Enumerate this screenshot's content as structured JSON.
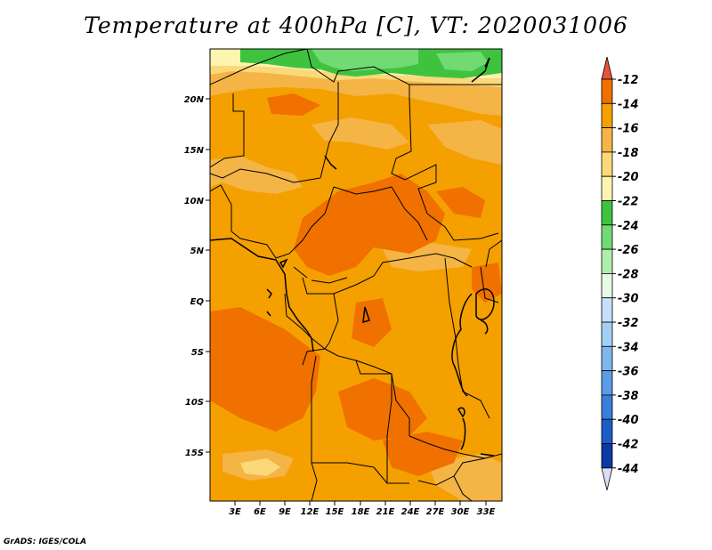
{
  "title": "Temperature at 400hPa [C], VT: 2020031006",
  "footer": "GrADS: IGES/COLA",
  "map": {
    "lat_labels": [
      "20N",
      "15N",
      "10N",
      "5N",
      "EQ",
      "5S",
      "10S",
      "15S"
    ],
    "lon_labels": [
      "3E",
      "6E",
      "9E",
      "12E",
      "15E",
      "18E",
      "21E",
      "24E",
      "27E",
      "30E",
      "33E"
    ]
  },
  "colorbar": {
    "labels": [
      "-12",
      "-14",
      "-16",
      "-18",
      "-20",
      "-22",
      "-24",
      "-26",
      "-28",
      "-30",
      "-32",
      "-34",
      "-36",
      "-38",
      "-40",
      "-42",
      "-44"
    ],
    "colors": [
      "#e8533a",
      "#f07000",
      "#f4a000",
      "#f4b446",
      "#fbd87a",
      "#fdf4b0",
      "#3fc33f",
      "#72da72",
      "#b0eeae",
      "#e6fae6",
      "#c6e0fa",
      "#a4cff4",
      "#7db7ee",
      "#5b9ce6",
      "#3a7fdc",
      "#1c5ec8",
      "#0a3aa6",
      "#09116e",
      "#dcdcf4"
    ]
  }
}
